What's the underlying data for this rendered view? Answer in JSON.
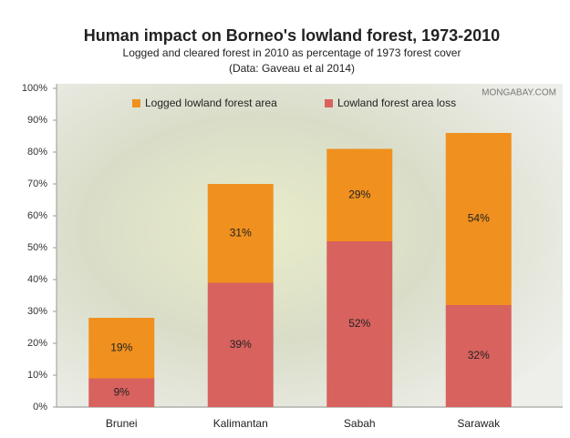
{
  "chart_data": {
    "type": "stacked-bar",
    "title": "Human impact on Borneo's lowland forest, 1973-2010",
    "subtitle": [
      "Logged and cleared forest in 2010 as percentage of 1973 forest cover",
      "(Data: Gaveau et al 2014)"
    ],
    "annotation": "MONGABAY.COM",
    "categories": [
      "Brunei",
      "Kalimantan",
      "Sabah",
      "Sarawak"
    ],
    "series": [
      {
        "name": "Logged lowland forest area",
        "color": "#f0901e",
        "values": [
          19,
          31,
          29,
          54
        ],
        "value_labels": [
          "19%",
          "31%",
          "29%",
          "54%"
        ]
      },
      {
        "name": "Lowland forest area loss",
        "color": "#d8625e",
        "values": [
          9,
          39,
          52,
          32
        ],
        "value_labels": [
          "9%",
          "39%",
          "52%",
          "32%"
        ]
      }
    ],
    "ylim": [
      0,
      100
    ],
    "yticks": [
      {
        "value": 0,
        "label": "0%"
      },
      {
        "value": 10,
        "label": "10%"
      },
      {
        "value": 20,
        "label": "20%"
      },
      {
        "value": 30,
        "label": "30%"
      },
      {
        "value": 40,
        "label": "40%"
      },
      {
        "value": 50,
        "label": "50%"
      },
      {
        "value": 60,
        "label": "60%"
      },
      {
        "value": 70,
        "label": "70%"
      },
      {
        "value": 80,
        "label": "80%"
      },
      {
        "value": 90,
        "label": "90%"
      },
      {
        "value": 100,
        "label": "100%"
      }
    ],
    "legend": "top"
  }
}
